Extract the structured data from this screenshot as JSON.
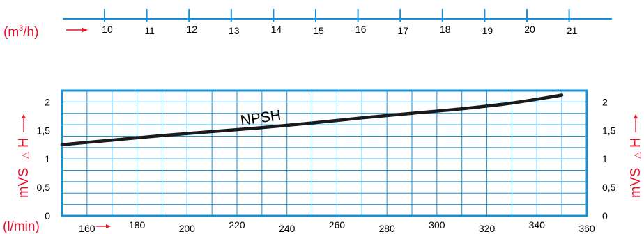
{
  "colors": {
    "axis": "#1a8fd0",
    "grid": "#1a8fd0",
    "curve": "#1a1a1a",
    "unit": "#e8102a"
  },
  "flow_scale": {
    "unit_label": {
      "prefix": "(m",
      "sup": "3",
      "suffix": "/h)"
    },
    "ticks": [
      "10",
      "11",
      "12",
      "13",
      "14",
      "15",
      "16",
      "17",
      "18",
      "19",
      "20",
      "21"
    ]
  },
  "y_axis": {
    "label_left": "mVS",
    "label_right": "mVS",
    "delta_symbol": "△",
    "h_letter": "H"
  },
  "x_axis": {
    "label": "(l/min)"
  },
  "chart_data": {
    "type": "line",
    "title": "",
    "xlabel": "(l/min)",
    "ylabel": "mVS △ H",
    "xlim": [
      150,
      360
    ],
    "ylim": [
      0,
      2.2
    ],
    "x_ticks": [
      "160",
      "180",
      "200",
      "220",
      "240",
      "260",
      "280",
      "300",
      "320",
      "340",
      "360"
    ],
    "y_ticks": [
      "0",
      "0,5",
      "1",
      "1,5",
      "2"
    ],
    "grid": true,
    "series": [
      {
        "name": "NPSH",
        "x": [
          150,
          170,
          190,
          210,
          230,
          250,
          270,
          290,
          310,
          330,
          350
        ],
        "y": [
          1.25,
          1.33,
          1.41,
          1.48,
          1.55,
          1.63,
          1.72,
          1.8,
          1.88,
          1.98,
          2.12
        ]
      }
    ]
  }
}
